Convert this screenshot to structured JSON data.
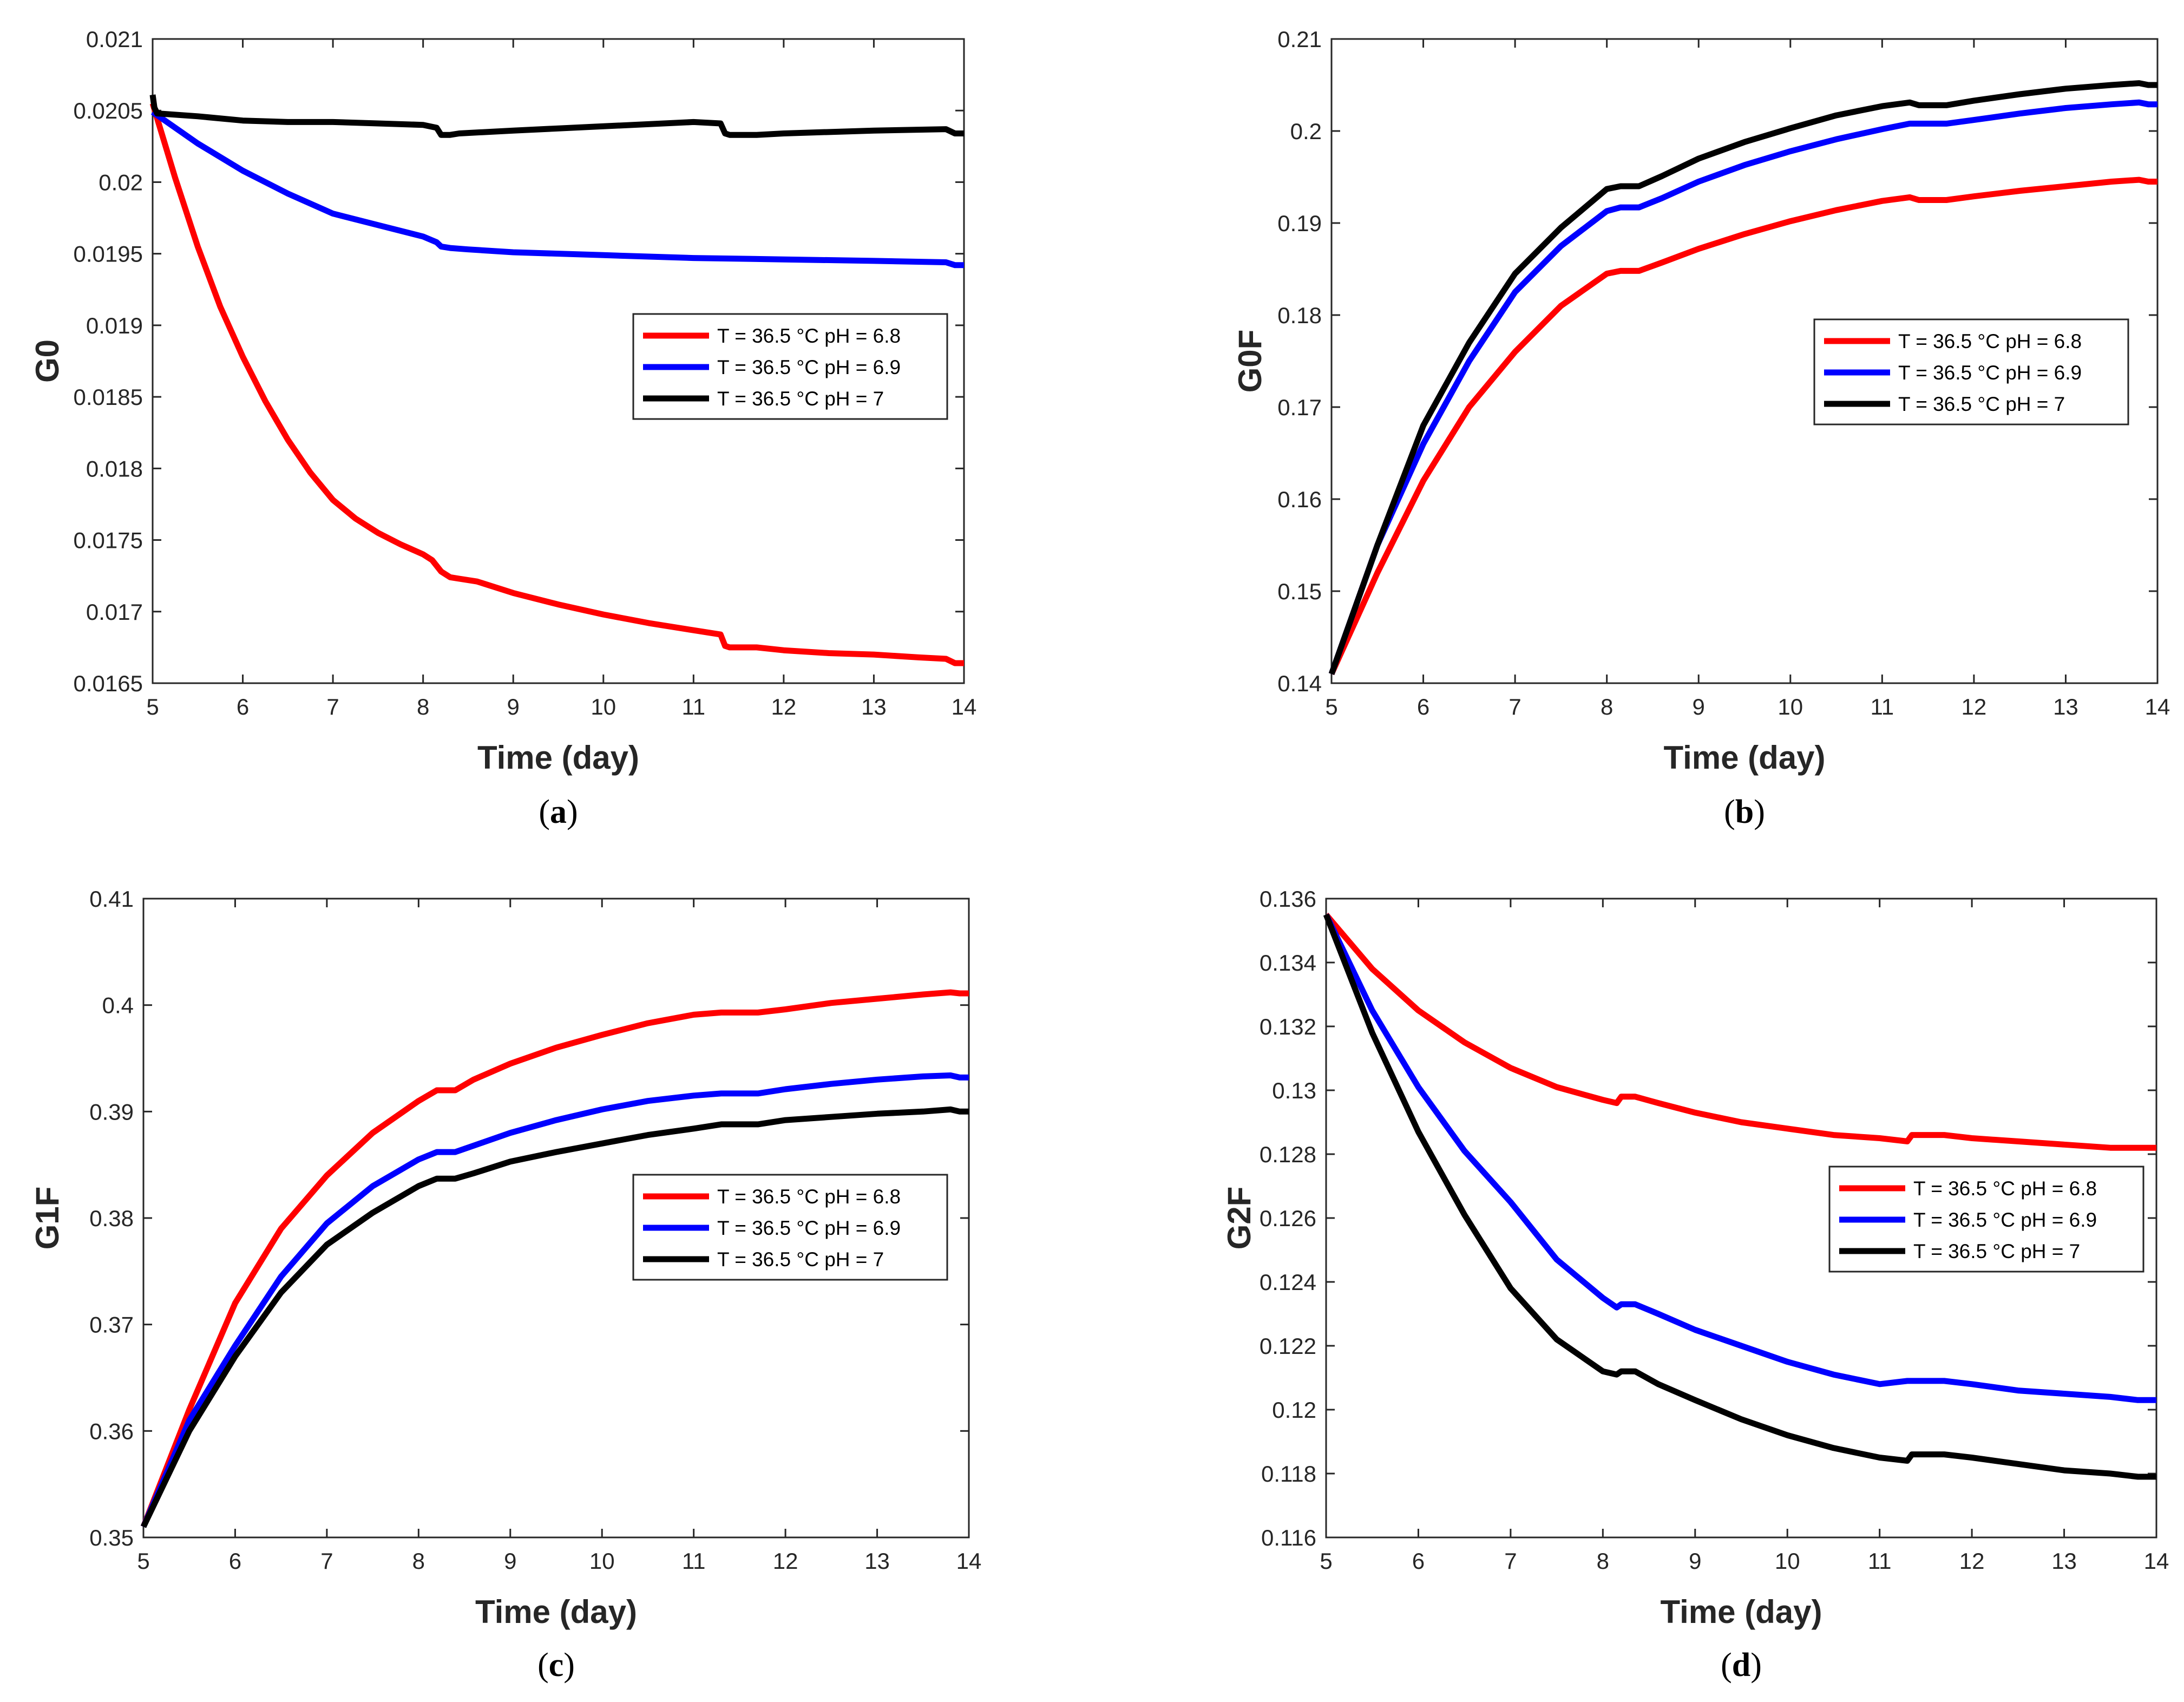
{
  "chart_data": [
    {
      "type": "line",
      "panel": "a",
      "caption_pre": "(",
      "caption_letter": "a",
      "caption_post": ")",
      "xlabel": "Time (day)",
      "ylabel": "G0",
      "xlim": [
        5,
        14
      ],
      "ylim": [
        0.0165,
        0.021
      ],
      "xticks": [
        5,
        6,
        7,
        8,
        9,
        10,
        11,
        12,
        13,
        14
      ],
      "yticks": [
        0.0165,
        0.017,
        0.0175,
        0.018,
        0.0185,
        0.019,
        0.0195,
        0.02,
        0.0205,
        0.021
      ],
      "ytick_labels": [
        "0.0165",
        "0.017",
        "0.0175",
        "0.018",
        "0.0185",
        "0.019",
        "0.0195",
        "0.02",
        "0.0205",
        "0.021"
      ],
      "legend": "right-middle",
      "series": [
        {
          "name": "T = 36.5 °C pH = 6.8",
          "color": "#ff0000",
          "x": [
            5,
            5.25,
            5.5,
            5.75,
            6,
            6.25,
            6.5,
            6.75,
            7,
            7.25,
            7.5,
            7.75,
            8,
            8.1,
            8.15,
            8.2,
            8.3,
            8.4,
            8.6,
            9,
            9.5,
            10,
            10.5,
            11,
            11.3,
            11.35,
            11.4,
            11.7,
            12,
            12.5,
            13,
            13.5,
            13.8,
            13.9,
            14
          ],
          "y": [
            0.02055,
            0.02003,
            0.01955,
            0.01913,
            0.01878,
            0.01847,
            0.0182,
            0.01797,
            0.01778,
            0.01765,
            0.01755,
            0.01747,
            0.0174,
            0.01736,
            0.01732,
            0.01728,
            0.01724,
            0.01723,
            0.01721,
            0.01713,
            0.01705,
            0.01698,
            0.01692,
            0.01687,
            0.01684,
            0.01676,
            0.01675,
            0.01675,
            0.01673,
            0.01671,
            0.0167,
            0.01668,
            0.01667,
            0.01664,
            0.01664
          ]
        },
        {
          "name": "T = 36.5 °C pH = 6.9",
          "color": "#0000ff",
          "x": [
            5,
            5.5,
            6,
            6.5,
            7,
            7.5,
            8,
            8.15,
            8.2,
            8.3,
            8.5,
            9,
            10,
            11,
            12,
            13,
            13.8,
            13.9,
            14
          ],
          "y": [
            0.02049,
            0.02027,
            0.02008,
            0.01992,
            0.01978,
            0.0197,
            0.01962,
            0.01958,
            0.01955,
            0.01954,
            0.01953,
            0.01951,
            0.01949,
            0.01947,
            0.01946,
            0.01945,
            0.01944,
            0.01942,
            0.01942
          ]
        },
        {
          "name": "T = 36.5 °C pH = 7",
          "color": "#000000",
          "x": [
            5,
            5.02,
            5.05,
            5.5,
            6,
            6.5,
            7,
            7.5,
            8,
            8.15,
            8.2,
            8.3,
            8.4,
            9,
            10,
            11,
            11.3,
            11.35,
            11.4,
            11.7,
            12,
            13,
            13.8,
            13.9,
            14
          ],
          "y": [
            0.02061,
            0.02052,
            0.02048,
            0.02046,
            0.02043,
            0.02042,
            0.02042,
            0.02041,
            0.0204,
            0.02038,
            0.02033,
            0.02033,
            0.02034,
            0.02036,
            0.02039,
            0.02042,
            0.02041,
            0.02034,
            0.02033,
            0.02033,
            0.02034,
            0.02036,
            0.02037,
            0.02034,
            0.02034
          ]
        }
      ]
    },
    {
      "type": "line",
      "panel": "b",
      "caption_pre": "(",
      "caption_letter": "b",
      "caption_post": ")",
      "xlabel": "Time (day)",
      "ylabel": "G0F",
      "xlim": [
        5,
        14
      ],
      "ylim": [
        0.14,
        0.21
      ],
      "xticks": [
        5,
        6,
        7,
        8,
        9,
        10,
        11,
        12,
        13,
        14
      ],
      "yticks": [
        0.14,
        0.15,
        0.16,
        0.17,
        0.18,
        0.19,
        0.2,
        0.21
      ],
      "ytick_labels": [
        "0.14",
        "0.15",
        "0.16",
        "0.17",
        "0.18",
        "0.19",
        "0.2",
        "0.21"
      ],
      "legend": "right-middle",
      "series": [
        {
          "name": "T = 36.5 °C pH = 6.8",
          "color": "#ff0000",
          "x": [
            5,
            5.5,
            6,
            6.5,
            7,
            7.5,
            8,
            8.15,
            8.35,
            8.6,
            9,
            9.5,
            10,
            10.5,
            11,
            11.3,
            11.4,
            11.7,
            12,
            12.5,
            13,
            13.5,
            13.8,
            13.9,
            14
          ],
          "y": [
            0.141,
            0.152,
            0.162,
            0.17,
            0.176,
            0.181,
            0.1845,
            0.1848,
            0.1848,
            0.1857,
            0.1872,
            0.1888,
            0.1902,
            0.1914,
            0.1924,
            0.1928,
            0.1925,
            0.1925,
            0.1929,
            0.1935,
            0.194,
            0.1945,
            0.1947,
            0.1945,
            0.1945
          ]
        },
        {
          "name": "T = 36.5 °C pH = 6.9",
          "color": "#0000ff",
          "x": [
            5,
            5.5,
            6,
            6.5,
            7,
            7.5,
            8,
            8.15,
            8.35,
            8.6,
            9,
            9.5,
            10,
            10.5,
            11,
            11.3,
            11.4,
            11.7,
            12,
            12.5,
            13,
            13.5,
            13.8,
            13.9,
            14
          ],
          "y": [
            0.141,
            0.155,
            0.166,
            0.175,
            0.1825,
            0.1875,
            0.1913,
            0.1917,
            0.1917,
            0.1927,
            0.1945,
            0.1963,
            0.1978,
            0.1991,
            0.2002,
            0.2008,
            0.2008,
            0.2008,
            0.2012,
            0.2019,
            0.2025,
            0.2029,
            0.2031,
            0.2029,
            0.2029
          ]
        },
        {
          "name": "T = 36.5 °C pH = 7",
          "color": "#000000",
          "x": [
            5,
            5.5,
            6,
            6.5,
            7,
            7.5,
            8,
            8.15,
            8.35,
            8.6,
            9,
            9.5,
            10,
            10.5,
            11,
            11.3,
            11.4,
            11.7,
            12,
            12.5,
            13,
            13.5,
            13.8,
            13.9,
            14
          ],
          "y": [
            0.141,
            0.155,
            0.168,
            0.177,
            0.1845,
            0.1895,
            0.1937,
            0.194,
            0.194,
            0.1951,
            0.197,
            0.1988,
            0.2003,
            0.2017,
            0.2027,
            0.2031,
            0.2028,
            0.2028,
            0.2033,
            0.204,
            0.2046,
            0.205,
            0.2052,
            0.205,
            0.205
          ]
        }
      ]
    },
    {
      "type": "line",
      "panel": "c",
      "caption_pre": "(",
      "caption_letter": "c",
      "caption_post": ")",
      "xlabel": "Time (day)",
      "ylabel": "G1F",
      "xlim": [
        5,
        14
      ],
      "ylim": [
        0.35,
        0.41
      ],
      "xticks": [
        5,
        6,
        7,
        8,
        9,
        10,
        11,
        12,
        13,
        14
      ],
      "yticks": [
        0.35,
        0.36,
        0.37,
        0.38,
        0.39,
        0.4,
        0.41
      ],
      "ytick_labels": [
        "0.35",
        "0.36",
        "0.37",
        "0.38",
        "0.39",
        "0.4",
        "0.41"
      ],
      "legend": "right-middle",
      "series": [
        {
          "name": "T = 36.5 °C pH = 6.8",
          "color": "#ff0000",
          "x": [
            5,
            5.5,
            6,
            6.5,
            7,
            7.5,
            8,
            8.2,
            8.4,
            8.6,
            9,
            9.5,
            10,
            10.5,
            11,
            11.3,
            11.7,
            12,
            12.5,
            13,
            13.5,
            13.8,
            13.9,
            14
          ],
          "y": [
            0.351,
            0.362,
            0.372,
            0.379,
            0.384,
            0.388,
            0.391,
            0.392,
            0.392,
            0.393,
            0.3945,
            0.396,
            0.3972,
            0.3983,
            0.3991,
            0.3993,
            0.3993,
            0.3996,
            0.4002,
            0.4006,
            0.401,
            0.4012,
            0.4011,
            0.4011
          ]
        },
        {
          "name": "T = 36.5 °C pH = 6.9",
          "color": "#0000ff",
          "x": [
            5,
            5.5,
            6,
            6.5,
            7,
            7.5,
            8,
            8.2,
            8.4,
            8.6,
            9,
            9.5,
            10,
            10.5,
            11,
            11.3,
            11.7,
            12,
            12.5,
            13,
            13.5,
            13.8,
            13.9,
            14
          ],
          "y": [
            0.351,
            0.361,
            0.368,
            0.3745,
            0.3795,
            0.383,
            0.3855,
            0.3862,
            0.3862,
            0.3868,
            0.388,
            0.3892,
            0.3902,
            0.391,
            0.3915,
            0.3917,
            0.3917,
            0.3921,
            0.3926,
            0.393,
            0.3933,
            0.3934,
            0.3932,
            0.3932
          ]
        },
        {
          "name": "T = 36.5 °C pH = 7",
          "color": "#000000",
          "x": [
            5,
            5.5,
            6,
            6.5,
            7,
            7.5,
            8,
            8.2,
            8.4,
            8.6,
            9,
            9.5,
            10,
            10.5,
            11,
            11.3,
            11.7,
            12,
            12.5,
            13,
            13.5,
            13.8,
            13.9,
            14
          ],
          "y": [
            0.351,
            0.36,
            0.367,
            0.373,
            0.3775,
            0.3805,
            0.383,
            0.3837,
            0.3837,
            0.3842,
            0.3853,
            0.3862,
            0.387,
            0.3878,
            0.3884,
            0.3888,
            0.3888,
            0.3892,
            0.3895,
            0.3898,
            0.39,
            0.3902,
            0.39,
            0.39
          ]
        }
      ]
    },
    {
      "type": "line",
      "panel": "d",
      "caption_pre": "(",
      "caption_letter": "d",
      "caption_post": ")",
      "xlabel": "Time (day)",
      "ylabel": "G2F",
      "xlim": [
        5,
        14
      ],
      "ylim": [
        0.116,
        0.136
      ],
      "xticks": [
        5,
        6,
        7,
        8,
        9,
        10,
        11,
        12,
        13,
        14
      ],
      "yticks": [
        0.116,
        0.118,
        0.12,
        0.122,
        0.124,
        0.126,
        0.128,
        0.13,
        0.132,
        0.134,
        0.136
      ],
      "ytick_labels": [
        "0.116",
        "0.118",
        "0.12",
        "0.122",
        "0.124",
        "0.126",
        "0.128",
        "0.13",
        "0.132",
        "0.134",
        "0.136"
      ],
      "legend": "right-middle",
      "series": [
        {
          "name": "T = 36.5 °C pH = 6.8",
          "color": "#ff0000",
          "x": [
            5,
            5.5,
            6,
            6.5,
            7,
            7.5,
            8,
            8.15,
            8.2,
            8.35,
            8.6,
            9,
            9.5,
            10,
            10.5,
            11,
            11.3,
            11.35,
            11.7,
            12,
            12.5,
            13,
            13.5,
            13.8,
            14
          ],
          "y": [
            0.1355,
            0.1338,
            0.1325,
            0.1315,
            0.1307,
            0.1301,
            0.1297,
            0.1296,
            0.1298,
            0.1298,
            0.1296,
            0.1293,
            0.129,
            0.1288,
            0.1286,
            0.1285,
            0.1284,
            0.1286,
            0.1286,
            0.1285,
            0.1284,
            0.1283,
            0.1282,
            0.1282,
            0.1282
          ]
        },
        {
          "name": "T = 36.5 °C pH = 6.9",
          "color": "#0000ff",
          "x": [
            5,
            5.5,
            6,
            6.5,
            7,
            7.5,
            8,
            8.15,
            8.2,
            8.35,
            8.6,
            9,
            9.5,
            10,
            10.5,
            11,
            11.3,
            11.7,
            12,
            12.5,
            13,
            13.5,
            13.8,
            14
          ],
          "y": [
            0.1355,
            0.1325,
            0.1301,
            0.1281,
            0.1265,
            0.1247,
            0.1235,
            0.1232,
            0.1233,
            0.1233,
            0.123,
            0.1225,
            0.122,
            0.1215,
            0.1211,
            0.1208,
            0.1209,
            0.1209,
            0.1208,
            0.1206,
            0.1205,
            0.1204,
            0.1203,
            0.1203
          ]
        },
        {
          "name": "T = 36.5 °C pH = 7",
          "color": "#000000",
          "x": [
            5,
            5.5,
            6,
            6.5,
            7,
            7.5,
            8,
            8.15,
            8.2,
            8.35,
            8.6,
            9,
            9.5,
            10,
            10.5,
            11,
            11.3,
            11.35,
            11.7,
            12,
            12.5,
            13,
            13.5,
            13.8,
            14
          ],
          "y": [
            0.1355,
            0.1318,
            0.1287,
            0.1261,
            0.1238,
            0.1222,
            0.1212,
            0.1211,
            0.1212,
            0.1212,
            0.1208,
            0.1203,
            0.1197,
            0.1192,
            0.1188,
            0.1185,
            0.1184,
            0.1186,
            0.1186,
            0.1185,
            0.1183,
            0.1181,
            0.118,
            0.1179,
            0.1179
          ]
        }
      ]
    }
  ]
}
